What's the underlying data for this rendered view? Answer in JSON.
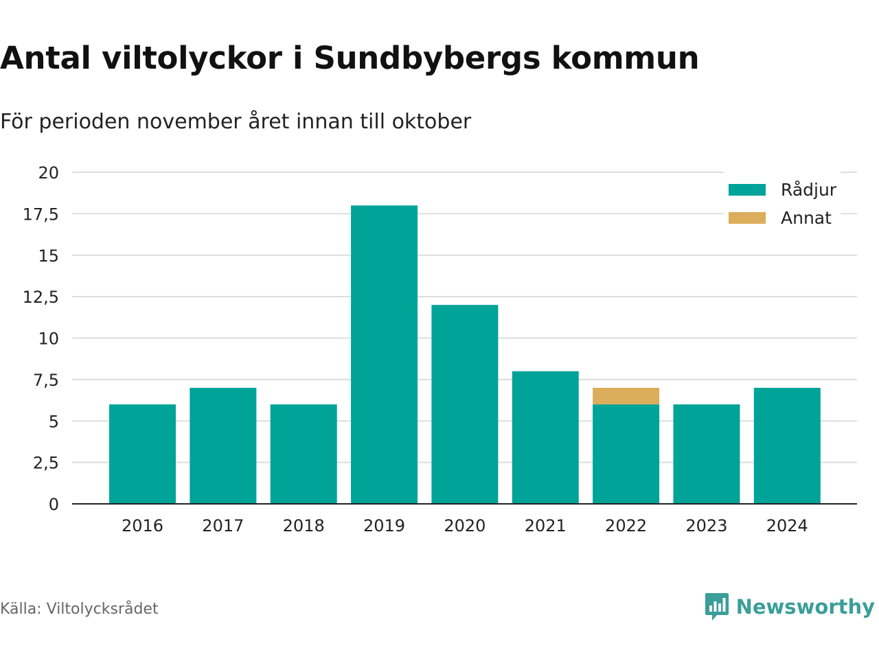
{
  "header": {
    "title": "Antal viltolyckor i Sundbybergs kommun",
    "subtitle": "För perioden november året innan till oktober"
  },
  "footer": {
    "source": "Källa: Viltolycksrådet",
    "brand": "Newsworthy",
    "brand_icon": "newsworthy-logo-icon",
    "brand_color": "#3b9e99"
  },
  "chart_data": {
    "type": "bar",
    "stacked": true,
    "categories": [
      "2016",
      "2017",
      "2018",
      "2019",
      "2020",
      "2021",
      "2022",
      "2023",
      "2024"
    ],
    "series": [
      {
        "name": "Rådjur",
        "color": "#00a398",
        "values": [
          6,
          7,
          6,
          18,
          12,
          8,
          6,
          6,
          7
        ]
      },
      {
        "name": "Annat",
        "color": "#dcad5a",
        "values": [
          0,
          0,
          0,
          0,
          0,
          0,
          1,
          0,
          0
        ]
      }
    ],
    "yticks": [
      "0",
      "2,5",
      "5",
      "7,5",
      "10",
      "12,5",
      "15",
      "17,5",
      "20"
    ],
    "ylim": [
      0,
      20
    ],
    "ystep": 2.5,
    "grid": true,
    "legend_position": "top-right"
  }
}
